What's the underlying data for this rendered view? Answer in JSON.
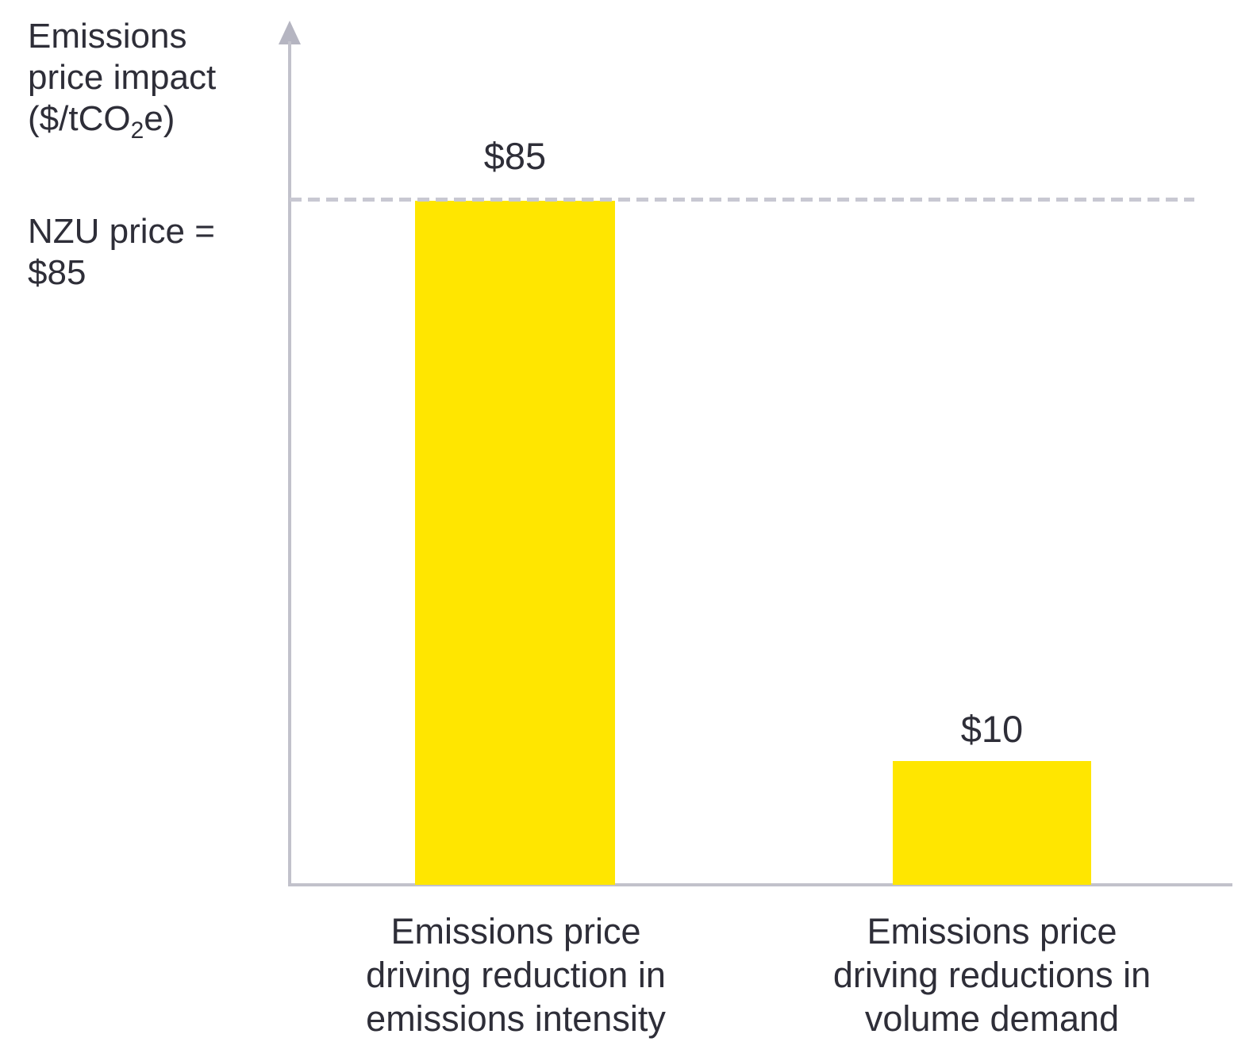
{
  "chart": {
    "y_axis_label": {
      "line1": "Emissions",
      "line2": "price impact",
      "line3_pre": "($/tCO",
      "line3_sub": "2",
      "line3_post": "e)"
    },
    "reference_label": {
      "line1": "NZU price =",
      "line2": "$85"
    },
    "bars": [
      {
        "value_label": "$85",
        "category_line1": "Emissions price",
        "category_line2": "driving reduction in",
        "category_line3": "emissions intensity"
      },
      {
        "value_label": "$10",
        "category_line1": "Emissions price",
        "category_line2": "driving reductions in",
        "category_line3": "volume demand"
      }
    ]
  },
  "colors": {
    "bar": "#FFE600",
    "text": "#2E2E38",
    "axis": "#C2C2CB",
    "dashed_reference_line": "#C8C8D2"
  },
  "chart_data": {
    "type": "bar",
    "categories": [
      "Emissions price driving reduction in emissions intensity",
      "Emissions price driving reductions in volume demand"
    ],
    "values": [
      85,
      10
    ],
    "value_labels": [
      "$85",
      "$10"
    ],
    "title": "",
    "xlabel": "",
    "ylabel": "Emissions price impact ($/tCO2e)",
    "ylim": [
      0,
      95
    ],
    "grid": false,
    "legend": "none",
    "bar_color": "#FFE600",
    "reference_line": {
      "value": 85,
      "label": "NZU price = $85",
      "style": "dashed"
    }
  }
}
